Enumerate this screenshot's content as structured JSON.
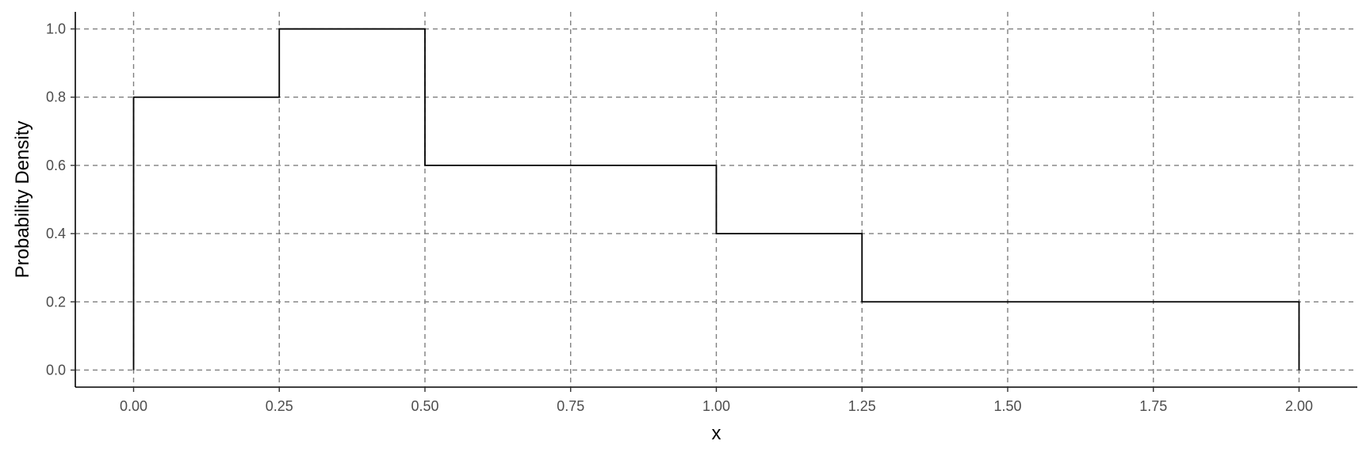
{
  "chart_data": {
    "type": "line",
    "subtype": "step",
    "title": "",
    "xlabel": "x",
    "ylabel": "Probability Density",
    "xlim": [
      -0.1,
      2.1
    ],
    "ylim": [
      -0.05,
      1.05
    ],
    "x_ticks": [
      0,
      0.25,
      0.5,
      0.75,
      1,
      1.25,
      1.5,
      1.75,
      2
    ],
    "x_tick_labels": [
      "0.00",
      "0.25",
      "0.50",
      "0.75",
      "1.00",
      "1.25",
      "1.50",
      "1.75",
      "2.00"
    ],
    "y_ticks": [
      0,
      0.2,
      0.4,
      0.6,
      0.8,
      1
    ],
    "y_tick_labels": [
      "0.0",
      "0.2",
      "0.4",
      "0.6",
      "0.8",
      "1.0"
    ],
    "grid": true,
    "grid_style": "dashed",
    "series": [
      {
        "x": [
          0,
          0.25,
          0.5,
          1,
          1.25,
          2
        ],
        "y": [
          0.8,
          1.0,
          0.6,
          0.4,
          0.2,
          0.2
        ],
        "start_at_zero": true,
        "end_at_zero": true
      }
    ],
    "colors": {
      "line": "#000000",
      "grid": "#7f7f7f",
      "tick_text": "#4d4d4d"
    }
  }
}
